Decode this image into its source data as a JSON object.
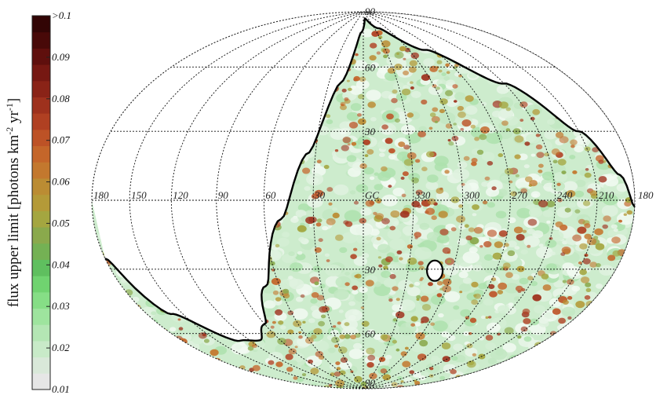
{
  "chart_data": {
    "type": "heatmap",
    "projection": "aitoff-hammer",
    "coordinate_frame": "galactic",
    "colorbar": {
      "title_main": "flux upper limit [photons km",
      "title_sup1": "-2",
      "title_mid": " yr",
      "title_sup2": "-1",
      "title_end": "]",
      "ticks": [
        "0.01",
        "0.02",
        "0.03",
        "0.04",
        "0.05",
        "0.06",
        "0.07",
        "0.08",
        "0.09",
        ">0.1"
      ],
      "range": [
        0.01,
        0.1
      ],
      "colors": [
        "#e6e6e6",
        "#d9e8d9",
        "#c8eac8",
        "#b4e6b4",
        "#9ee49e",
        "#86de86",
        "#70d370",
        "#5fbf5f",
        "#74b154",
        "#8aa94c",
        "#a4a640",
        "#b49a38",
        "#bb8c33",
        "#c3782e",
        "#c4662a",
        "#bd5226",
        "#b04022",
        "#9e311d",
        "#8a2317",
        "#761812",
        "#5f0f0d",
        "#480908",
        "#320505"
      ]
    },
    "longitude_labels": [
      "180",
      "150",
      "120",
      "90",
      "60",
      "30",
      "GC",
      "330",
      "300",
      "270",
      "240",
      "210",
      "180"
    ],
    "longitude_values": [
      180,
      150,
      120,
      90,
      60,
      30,
      0,
      -30,
      -60,
      -90,
      -120,
      -150,
      -180
    ],
    "latitude_labels": [
      "90",
      "60",
      "30",
      "30",
      "60",
      "90"
    ],
    "latitude_values": [
      90,
      60,
      30,
      -30,
      -60,
      -90
    ],
    "grid": true,
    "colors": {
      "background": "#ffffff",
      "map_base": "#cdeccd",
      "boundary": "#000000",
      "grid": "#111111"
    }
  }
}
